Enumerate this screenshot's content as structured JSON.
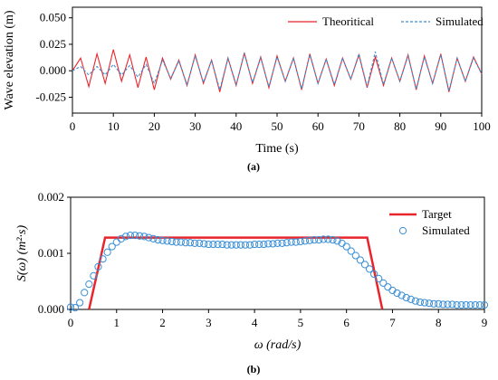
{
  "chart_data": [
    {
      "type": "line",
      "caption": "(a)",
      "xlabel": "Time (s)",
      "ylabel": "Wave elevation (m)",
      "xlim": [
        0,
        100
      ],
      "ylim": [
        -0.04,
        0.06
      ],
      "xticks": [
        0,
        10,
        20,
        30,
        40,
        50,
        60,
        70,
        80,
        90,
        100
      ],
      "yticks": [
        -0.025,
        0.0,
        0.025,
        0.05
      ],
      "ytick_labels": [
        "-0.025",
        "0.000",
        "0.025",
        "0.050"
      ],
      "legend_position": "top-right",
      "grid": false,
      "series": [
        {
          "name": "Theoritical",
          "style": "solid",
          "color": "#e8252b",
          "x": [
            0,
            2,
            4,
            6,
            8,
            10,
            12,
            14,
            16,
            18,
            20,
            22,
            24,
            26,
            28,
            30,
            32,
            34,
            36,
            38,
            40,
            42,
            44,
            46,
            48,
            50,
            52,
            54,
            56,
            58,
            60,
            62,
            64,
            66,
            68,
            70,
            72,
            74,
            76,
            78,
            80,
            82,
            84,
            86,
            88,
            90,
            92,
            94,
            96,
            98,
            100
          ],
          "y": [
            0.0,
            0.012,
            -0.015,
            0.016,
            -0.012,
            0.02,
            -0.01,
            0.015,
            -0.016,
            0.013,
            -0.018,
            0.012,
            -0.008,
            0.01,
            -0.014,
            0.015,
            -0.012,
            0.01,
            -0.02,
            0.012,
            -0.014,
            0.017,
            -0.012,
            0.013,
            -0.016,
            0.014,
            -0.01,
            0.012,
            -0.018,
            0.016,
            -0.012,
            0.011,
            -0.014,
            0.012,
            -0.008,
            0.015,
            -0.016,
            0.013,
            -0.014,
            0.012,
            -0.01,
            0.015,
            -0.018,
            0.014,
            -0.012,
            0.016,
            -0.02,
            0.012,
            -0.01,
            0.013,
            -0.003
          ]
        },
        {
          "name": "Simulated",
          "style": "dashed",
          "color": "#3a8fd6",
          "x": [
            0,
            2,
            4,
            6,
            8,
            10,
            12,
            14,
            16,
            18,
            20,
            22,
            24,
            26,
            28,
            30,
            32,
            34,
            36,
            38,
            40,
            42,
            44,
            46,
            48,
            50,
            52,
            54,
            56,
            58,
            60,
            62,
            64,
            66,
            68,
            70,
            72,
            74,
            76,
            78,
            80,
            82,
            84,
            86,
            88,
            90,
            92,
            94,
            96,
            98,
            100
          ],
          "y": [
            0.0,
            0.004,
            -0.004,
            0.004,
            -0.004,
            0.006,
            -0.004,
            0.005,
            -0.006,
            0.006,
            -0.012,
            0.01,
            -0.007,
            0.009,
            -0.013,
            0.014,
            -0.011,
            0.01,
            -0.018,
            0.012,
            -0.013,
            0.016,
            -0.011,
            0.012,
            -0.015,
            0.013,
            -0.01,
            0.012,
            -0.017,
            0.015,
            -0.012,
            0.011,
            -0.013,
            0.012,
            -0.008,
            0.016,
            -0.015,
            0.018,
            -0.013,
            0.012,
            -0.01,
            0.014,
            -0.017,
            0.013,
            -0.012,
            0.015,
            -0.019,
            0.012,
            -0.01,
            0.012,
            -0.003
          ]
        }
      ]
    },
    {
      "type": "line",
      "caption": "(b)",
      "xlabel": "ω (rad/s)",
      "ylabel": "S(ω) (m²·s)",
      "xlim": [
        0,
        9
      ],
      "ylim": [
        0,
        0.002
      ],
      "xticks": [
        0,
        1,
        2,
        3,
        4,
        5,
        6,
        7,
        8,
        9
      ],
      "yticks": [
        0,
        0.001,
        0.002
      ],
      "ytick_labels": [
        "0.000",
        "0.001",
        "0.002"
      ],
      "legend_position": "top-right",
      "grid": false,
      "series": [
        {
          "name": "Target",
          "style": "line",
          "color": "#e8252b",
          "x": [
            0.4,
            0.75,
            6.45,
            6.78
          ],
          "y": [
            0.0,
            0.00128,
            0.00128,
            0.0
          ]
        },
        {
          "name": "Simulated",
          "style": "markers",
          "color": "#3a8fd6",
          "x": [
            0.0,
            0.1,
            0.2,
            0.3,
            0.4,
            0.5,
            0.6,
            0.7,
            0.8,
            0.9,
            1.0,
            1.1,
            1.2,
            1.3,
            1.4,
            1.5,
            1.6,
            1.7,
            1.8,
            1.9,
            2.0,
            2.1,
            2.2,
            2.3,
            2.4,
            2.5,
            2.6,
            2.7,
            2.8,
            2.9,
            3.0,
            3.1,
            3.2,
            3.3,
            3.4,
            3.5,
            3.6,
            3.7,
            3.8,
            3.9,
            4.0,
            4.1,
            4.2,
            4.3,
            4.4,
            4.5,
            4.6,
            4.7,
            4.8,
            4.9,
            5.0,
            5.1,
            5.2,
            5.3,
            5.4,
            5.5,
            5.6,
            5.7,
            5.8,
            5.9,
            6.0,
            6.1,
            6.2,
            6.3,
            6.4,
            6.5,
            6.6,
            6.7,
            6.8,
            6.9,
            7.0,
            7.1,
            7.2,
            7.3,
            7.4,
            7.5,
            7.6,
            7.7,
            7.8,
            7.9,
            8.0,
            8.1,
            8.2,
            8.3,
            8.4,
            8.5,
            8.6,
            8.7,
            8.8,
            8.9,
            9.0
          ],
          "y": [
            4e-05,
            3e-05,
            0.00012,
            0.0003,
            0.00045,
            0.0006,
            0.00076,
            0.0009,
            0.00102,
            0.00112,
            0.0012,
            0.00126,
            0.0013,
            0.00132,
            0.00132,
            0.00131,
            0.0013,
            0.00128,
            0.00126,
            0.00124,
            0.00123,
            0.00122,
            0.00121,
            0.0012,
            0.0012,
            0.00119,
            0.00119,
            0.00118,
            0.00118,
            0.00117,
            0.00116,
            0.00116,
            0.00116,
            0.00116,
            0.00115,
            0.00115,
            0.00115,
            0.00115,
            0.00115,
            0.00115,
            0.00116,
            0.00116,
            0.00116,
            0.00117,
            0.00117,
            0.00118,
            0.00118,
            0.00119,
            0.0012,
            0.0012,
            0.00121,
            0.00122,
            0.00123,
            0.00124,
            0.00124,
            0.00125,
            0.00125,
            0.00124,
            0.00122,
            0.00118,
            0.00112,
            0.00104,
            0.00096,
            0.00088,
            0.0008,
            0.00072,
            0.00063,
            0.00055,
            0.00047,
            0.0004,
            0.00034,
            0.00029,
            0.00025,
            0.00021,
            0.00018,
            0.00015,
            0.00013,
            0.00012,
            0.00011,
            0.0001,
            0.0001,
            9e-05,
            9e-05,
            9e-05,
            8e-05,
            8e-05,
            8e-05,
            8e-05,
            8e-05,
            8e-05,
            8e-05
          ]
        }
      ]
    }
  ]
}
